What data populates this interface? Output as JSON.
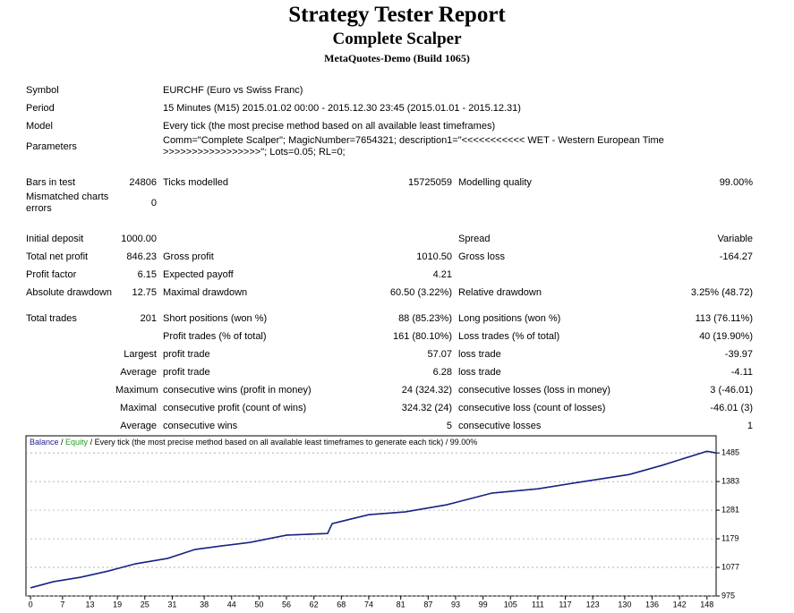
{
  "header": {
    "title": "Strategy Tester Report",
    "subtitle": "Complete Scalper",
    "build": "MetaQuotes-Demo (Build 1065)"
  },
  "info": [
    [
      "Symbol",
      "EURCHF (Euro vs Swiss Franc)"
    ],
    [
      "Period",
      "15 Minutes (M15) 2015.01.02 00:00 - 2015.12.30 23:45 (2015.01.01 - 2015.12.31)"
    ],
    [
      "Model",
      "Every tick (the most precise method based on all available least timeframes)"
    ],
    [
      "Parameters",
      "Comm=\"Complete Scalper\"; MagicNumber=7654321; description1=\"<<<<<<<<<<< WET - Western European Time >>>>>>>>>>>>>>>>>\"; Lots=0.05; RL=0;"
    ]
  ],
  "stats": [
    [
      [
        "Bars in test",
        "24806",
        "Ticks modelled",
        "15725059",
        "Modelling quality",
        "99.00%"
      ],
      [
        "Mismatched charts errors",
        "0",
        null,
        null,
        null,
        null
      ]
    ],
    [
      [
        "Initial deposit",
        "1000.00",
        null,
        null,
        "Spread",
        "Variable"
      ],
      [
        "Total net profit",
        "846.23",
        "Gross profit",
        "1010.50",
        "Gross loss",
        "-164.27"
      ],
      [
        "Profit factor",
        "6.15",
        "Expected payoff",
        "4.21",
        null,
        null
      ],
      [
        "Absolute drawdown",
        "12.75",
        "Maximal drawdown",
        "60.50 (3.22%)",
        "Relative drawdown",
        "3.25% (48.72)"
      ]
    ],
    [
      [
        "Total trades",
        "201",
        "Short positions (won %)",
        "88 (85.23%)",
        "Long positions (won %)",
        "113 (76.11%)"
      ],
      [
        null,
        null,
        "Profit trades (% of total)",
        "161 (80.10%)",
        "Loss trades (% of total)",
        "40 (19.90%)"
      ],
      [
        null,
        "Largest",
        "profit trade",
        "57.07",
        "loss trade",
        "-39.97"
      ],
      [
        null,
        "Average",
        "profit trade",
        "6.28",
        "loss trade",
        "-4.11"
      ],
      [
        null,
        "Maximum",
        "consecutive wins (profit in money)",
        "24 (324.32)",
        "consecutive losses (loss in money)",
        "3 (-46.01)"
      ],
      [
        null,
        "Maximal",
        "consecutive profit (count of wins)",
        "324.32 (24)",
        "consecutive loss (count of losses)",
        "-46.01 (3)"
      ],
      [
        null,
        "Average",
        "consecutive wins",
        "5",
        "consecutive losses",
        "1"
      ]
    ]
  ],
  "chart_data": {
    "type": "line",
    "separator": " / ",
    "caption": "Every tick (the most precise method based on all available least timeframes to generate each tick)",
    "quality": "99.00%",
    "x": [
      0,
      5,
      11,
      17,
      23,
      30,
      36,
      42,
      48,
      56,
      65,
      66,
      74,
      82,
      91,
      101,
      111,
      121,
      131,
      138,
      148,
      150
    ],
    "series": [
      {
        "name": "Balance",
        "color": "#1c1c8f",
        "values": [
          1004,
          1026,
          1042,
          1064,
          1090,
          1109,
          1141,
          1154,
          1166,
          1192,
          1198,
          1233,
          1265,
          1275,
          1300,
          1342,
          1357,
          1383,
          1408,
          1440,
          1491,
          1485
        ]
      },
      {
        "name": "Equity",
        "color": "#22a022",
        "values": [
          1004,
          1026,
          1042,
          1064,
          1090,
          1109,
          1141,
          1154,
          1166,
          1192,
          1198,
          1233,
          1265,
          1275,
          1300,
          1342,
          1357,
          1383,
          1408,
          1440,
          1491,
          1485
        ]
      }
    ],
    "xlim": [
      -1,
      150
    ],
    "ylim": [
      975,
      1546
    ],
    "xticks": [
      0,
      7,
      13,
      19,
      25,
      31,
      38,
      44,
      50,
      56,
      62,
      68,
      74,
      81,
      87,
      93,
      99,
      105,
      111,
      117,
      123,
      130,
      136,
      142,
      148
    ],
    "yticks": [
      975,
      1077,
      1179,
      1281,
      1383,
      1485
    ],
    "y_axis_position": "right",
    "grid": true
  }
}
